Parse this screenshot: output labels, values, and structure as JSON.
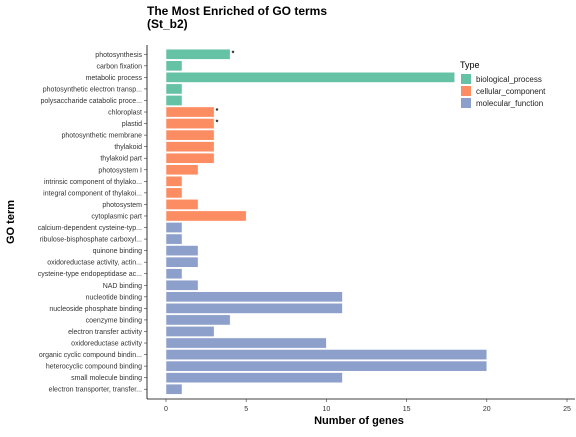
{
  "chart_data": {
    "type": "bar",
    "orientation": "horizontal",
    "title": "The Most Enriched of GO terms",
    "subtitle": "(St_b2)",
    "xlabel": "Number of genes",
    "ylabel": "GO term",
    "xlim": [
      0,
      25
    ],
    "xticks": [
      "0",
      "5",
      "10",
      "15",
      "20",
      "25"
    ],
    "grid": false,
    "legend": {
      "title": "Type",
      "placement": "right",
      "entries": [
        {
          "name": "biological_process",
          "color": "#66c2a5"
        },
        {
          "name": "cellular_component",
          "color": "#fc8d62"
        },
        {
          "name": "molecular_function",
          "color": "#8da0cb"
        }
      ]
    },
    "categories": [
      "photosynthesis",
      "carbon fixation",
      "metabolic process",
      "photosynthetic electron transp...",
      "polysaccharide catabolic proce...",
      "chloroplast",
      "plastid",
      "photosynthetic membrane",
      "thylakoid",
      "thylakoid part",
      "photosystem I",
      "intrinsic component of thylako...",
      "integral component of thylakoi...",
      "photosystem",
      "cytoplasmic part",
      "calcium-dependent cysteine-typ...",
      "ribulose-bisphosphate carboxyl...",
      "quinone binding",
      "oxidoreductase activity, actin...",
      "cysteine-type endopeptidase ac...",
      "NAD binding",
      "nucleotide binding",
      "nucleoside phosphate binding",
      "coenzyme binding",
      "electron transfer activity",
      "oxidoreductase activity",
      "organic cyclic compound bindin...",
      "heterocyclic compound binding",
      "small molecule binding",
      "electron transporter, transfer..."
    ],
    "values": [
      4,
      1,
      18,
      1,
      1,
      3,
      3,
      3,
      3,
      3,
      2,
      1,
      1,
      2,
      5,
      1,
      1,
      2,
      2,
      1,
      2,
      11,
      11,
      4,
      3,
      10,
      20,
      20,
      11,
      1
    ],
    "types": [
      "biological_process",
      "biological_process",
      "biological_process",
      "biological_process",
      "biological_process",
      "cellular_component",
      "cellular_component",
      "cellular_component",
      "cellular_component",
      "cellular_component",
      "cellular_component",
      "cellular_component",
      "cellular_component",
      "cellular_component",
      "cellular_component",
      "molecular_function",
      "molecular_function",
      "molecular_function",
      "molecular_function",
      "molecular_function",
      "molecular_function",
      "molecular_function",
      "molecular_function",
      "molecular_function",
      "molecular_function",
      "molecular_function",
      "molecular_function",
      "molecular_function",
      "molecular_function",
      "molecular_function"
    ],
    "significance": [
      "*",
      "",
      "",
      "",
      "",
      "*",
      "*",
      "",
      "",
      "",
      "",
      "",
      "",
      "",
      "",
      "",
      "",
      "",
      "",
      "",
      "",
      "",
      "",
      "",
      "",
      "",
      "",
      "",
      "",
      ""
    ]
  }
}
